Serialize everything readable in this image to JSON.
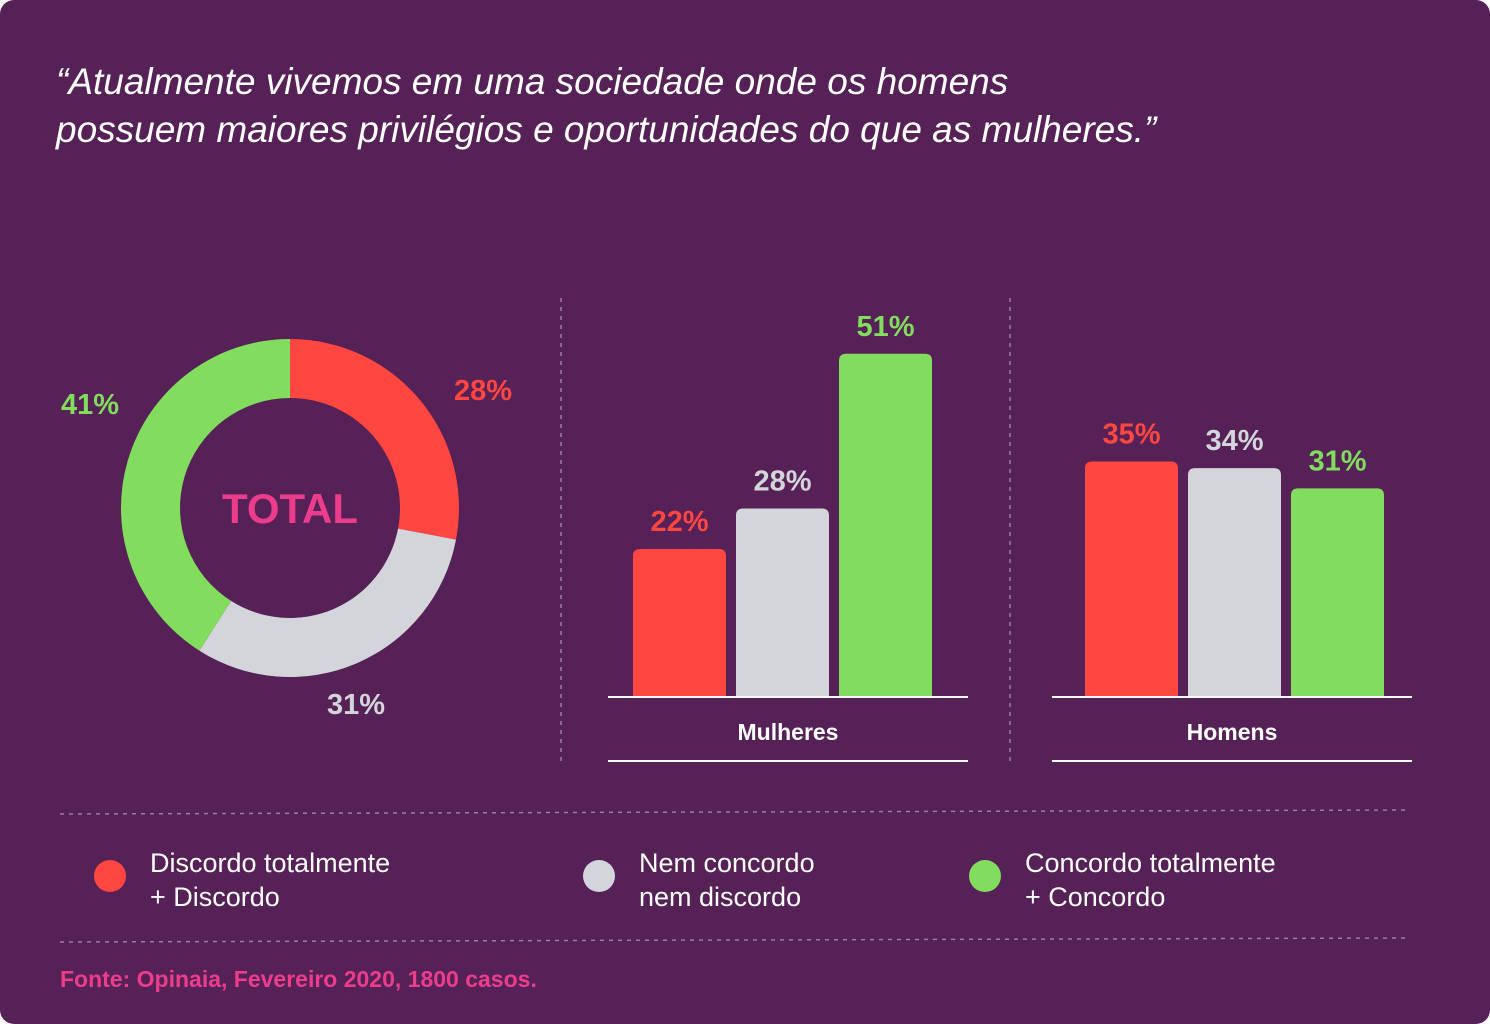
{
  "quote": {
    "line1": "“Atualmente vivemos em uma sociedade onde os homens",
    "line2": "possuem maiores privilégios e oportunidades do que as mulheres.”"
  },
  "colors": {
    "background": "#562156",
    "discordo": "#ff4640",
    "neutro": "#d3d5da",
    "concordo": "#82dc5e",
    "accent": "#ec3d8d"
  },
  "chart_data": [
    {
      "type": "pie",
      "center_label": "TOTAL",
      "slices": [
        {
          "category": "discordo",
          "value": 28,
          "label": "28%"
        },
        {
          "category": "neutro",
          "value": 31,
          "label": "31%"
        },
        {
          "category": "concordo",
          "value": 41,
          "label": "41%"
        }
      ]
    },
    {
      "type": "bar",
      "group_label": "Mulheres",
      "bars": [
        {
          "category": "discordo",
          "value": 22,
          "label": "22%"
        },
        {
          "category": "neutro",
          "value": 28,
          "label": "28%"
        },
        {
          "category": "concordo",
          "value": 51,
          "label": "51%"
        }
      ]
    },
    {
      "type": "bar",
      "group_label": "Homens",
      "bars": [
        {
          "category": "discordo",
          "value": 35,
          "label": "35%"
        },
        {
          "category": "neutro",
          "value": 34,
          "label": "34%"
        },
        {
          "category": "concordo",
          "value": 31,
          "label": "31%"
        }
      ]
    }
  ],
  "legend": [
    {
      "category": "discordo",
      "line1": "Discordo totalmente",
      "line2": "+ Discordo"
    },
    {
      "category": "neutro",
      "line1": "Nem concordo",
      "line2": "nem discordo"
    },
    {
      "category": "concordo",
      "line1": "Concordo totalmente",
      "line2": "+ Concordo"
    }
  ],
  "source": "Fonte: Opinaia, Fevereiro 2020, 1800 casos."
}
